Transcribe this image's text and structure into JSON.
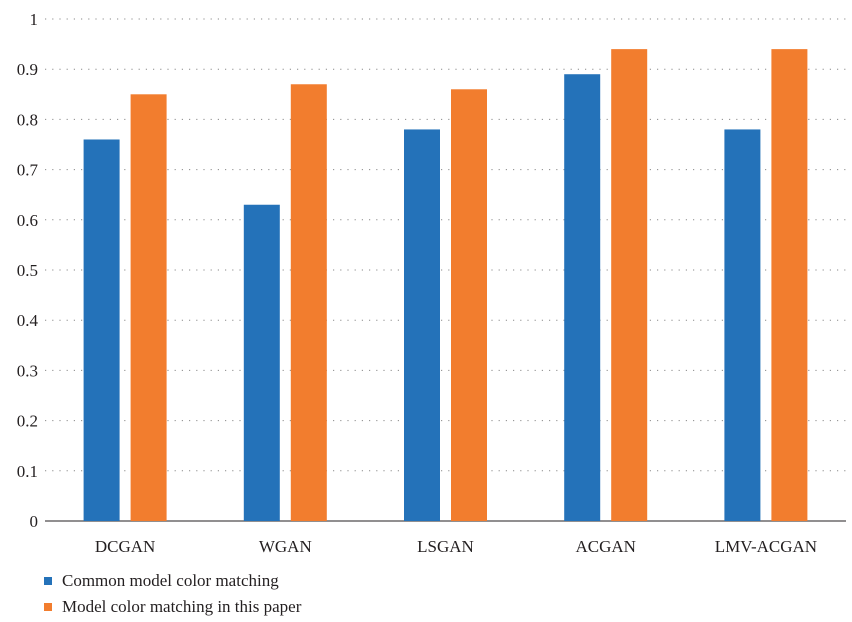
{
  "chart_data": {
    "type": "bar",
    "categories": [
      "DCGAN",
      "WGAN",
      "LSGAN",
      "ACGAN",
      "LMV-ACGAN"
    ],
    "series": [
      {
        "name": "Common model color matching",
        "values": [
          0.76,
          0.63,
          0.78,
          0.89,
          0.78
        ],
        "color": "#2472b9"
      },
      {
        "name": "Model color matching in this paper",
        "values": [
          0.85,
          0.87,
          0.86,
          0.94,
          0.94
        ],
        "color": "#f27d2e"
      }
    ],
    "yticks": [
      "0",
      "0.1",
      "0.2",
      "0.3",
      "0.4",
      "0.5",
      "0.6",
      "0.7",
      "0.8",
      "0.9",
      "1"
    ],
    "ylim": [
      0,
      1
    ],
    "grid": true,
    "legend_position": "bottom-left"
  }
}
